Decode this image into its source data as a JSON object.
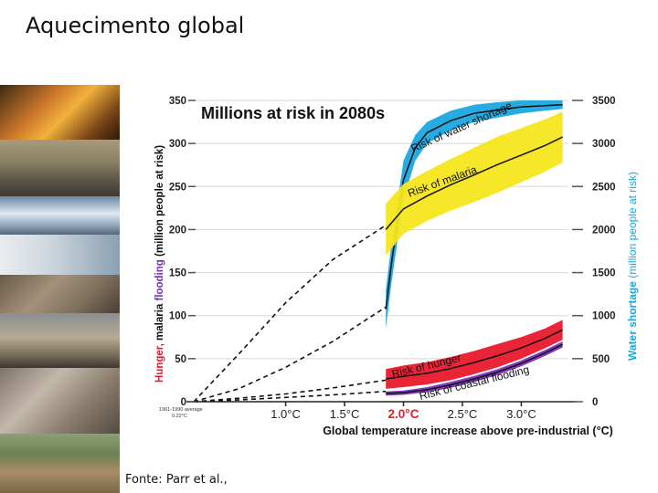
{
  "slide": {
    "title": "Aquecimento global",
    "caption": "Fonte: Parr et al.,"
  },
  "chart_data": {
    "type": "area",
    "title": "Millions at risk in 2080s",
    "xlabel": "Global temperature increase above pre-industrial (°C)",
    "ylabel_left_part1": "Hunger,",
    "ylabel_left_part2": " malaria ",
    "ylabel_left_part3": "flooding",
    "ylabel_left_part4": " (million people at risk)",
    "ylabel_right_part1": "Water shortage",
    "ylabel_right_part2": " (million people at risk)",
    "x_ticks": [
      "1.0°C",
      "1.5°C",
      "2.0°C",
      "2.5°C",
      "3.0°C"
    ],
    "x_tick_values": [
      1.0,
      1.5,
      2.0,
      2.5,
      3.0
    ],
    "x_highlight": "2.0°C",
    "xlim": [
      0.22,
      3.4
    ],
    "baseline_note_line1": "1961-1990 average",
    "baseline_note_line2": "0.22°C",
    "y_left_ticks": [
      0,
      50,
      100,
      150,
      200,
      250,
      300,
      350
    ],
    "y_right_ticks": [
      0,
      500,
      1000,
      1500,
      2000,
      2500,
      3000,
      3500
    ],
    "ylim_left": [
      0,
      350
    ],
    "ylim_right": [
      0,
      3500
    ],
    "series": [
      {
        "name": "Risk of water shortage",
        "axis": "right",
        "color": "#1aa7e0",
        "x": [
          1.85,
          1.9,
          2.0,
          2.1,
          2.2,
          2.4,
          2.6,
          2.8,
          3.0,
          3.2,
          3.35
        ],
        "lower": [
          850,
          1400,
          2350,
          2800,
          3000,
          3150,
          3250,
          3300,
          3350,
          3380,
          3400
        ],
        "upper": [
          1300,
          1850,
          2800,
          3100,
          3250,
          3380,
          3450,
          3480,
          3500,
          3500,
          3500
        ]
      },
      {
        "name": "Risk of malaria",
        "axis": "left",
        "color": "#f7e61d",
        "x": [
          1.85,
          2.0,
          2.2,
          2.4,
          2.6,
          2.8,
          3.0,
          3.2,
          3.35
        ],
        "lower": [
          170,
          195,
          210,
          222,
          232,
          243,
          255,
          267,
          278
        ],
        "upper": [
          230,
          253,
          268,
          282,
          295,
          308,
          318,
          328,
          337
        ]
      },
      {
        "name": "Risk of hunger",
        "axis": "left",
        "color": "#e8192c",
        "x": [
          1.85,
          2.0,
          2.2,
          2.4,
          2.6,
          2.8,
          3.0,
          3.2,
          3.35
        ],
        "lower": [
          15,
          17,
          20,
          25,
          32,
          40,
          50,
          62,
          72
        ],
        "upper": [
          38,
          42,
          46,
          52,
          59,
          67,
          75,
          85,
          95
        ]
      },
      {
        "name": "Risk of coastal flooding",
        "axis": "left",
        "color": "#7b2fbe",
        "x": [
          1.85,
          2.0,
          2.2,
          2.4,
          2.6,
          2.8,
          3.0,
          3.2,
          3.35
        ],
        "lower": [
          7,
          8,
          11,
          16,
          23,
          31,
          41,
          53,
          63
        ],
        "upper": [
          12,
          13,
          17,
          23,
          30,
          38,
          48,
          60,
          70
        ]
      }
    ],
    "baseline_curves": [
      {
        "x": [
          0.22,
          0.6,
          1.0,
          1.4,
          1.85
        ],
        "y": [
          0,
          55,
          115,
          165,
          205
        ]
      },
      {
        "x": [
          0.22,
          0.6,
          1.0,
          1.4,
          1.85
        ],
        "y": [
          0,
          15,
          40,
          70,
          110
        ]
      },
      {
        "x": [
          0.22,
          0.6,
          1.0,
          1.4,
          1.85
        ],
        "y": [
          0,
          4,
          9,
          16,
          25
        ]
      },
      {
        "x": [
          0.22,
          0.6,
          1.0,
          1.4,
          1.85
        ],
        "y": [
          0,
          2,
          5,
          8,
          12
        ]
      }
    ]
  }
}
